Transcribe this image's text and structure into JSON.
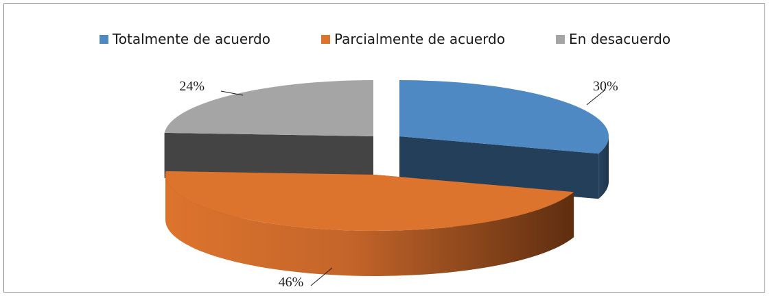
{
  "chart_data": {
    "type": "pie",
    "title": "",
    "categories": [
      "Totalmente de acuerdo",
      "Parcialmente de acuerdo",
      "En desacuerdo"
    ],
    "values": [
      30,
      46,
      24
    ],
    "data_labels": [
      "30%",
      "46%",
      "24%"
    ],
    "legend": "top",
    "colors": [
      "#4f89c4",
      "#dd742d",
      "#a5a5a5"
    ],
    "side_colors": [
      "#243f5a",
      "#8a4515",
      "#444444"
    ]
  }
}
